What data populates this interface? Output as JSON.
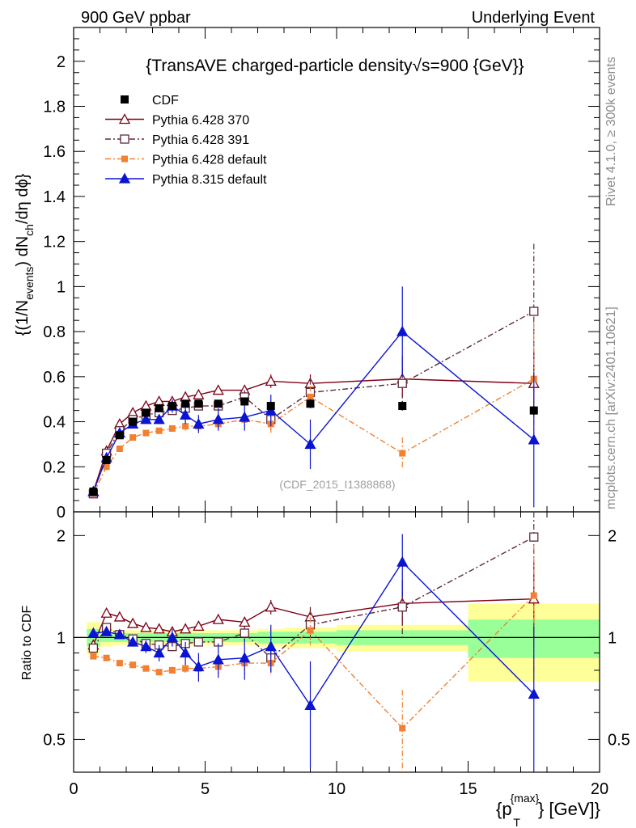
{
  "header": {
    "left": "900 GeV ppbar",
    "right": "Underlying Event"
  },
  "side_labels": {
    "rivet": "Rivet 4.1.0, ≥ 300k events",
    "mcplots": "mcplots.cern.ch [arXiv:2401.10621]"
  },
  "chart_data": {
    "type": "scatter",
    "title": "{TransAVE charged-particle density√s=900 {GeV}}",
    "watermark": "(CDF_2015_I1388868)",
    "ylabel_parts": {
      "prefix": "{(1/N",
      "sub1": "events",
      "mid": ") dN",
      "sub2": "ch",
      "suffix": "/dη dϕ}"
    },
    "ratio_ylabel": "Ratio to CDF",
    "xlabel_parts": {
      "prefix": "{p",
      "sub": "T",
      "sup": "{max}",
      "suffix": "} [GeV]}"
    },
    "xlim": [
      0,
      20
    ],
    "ylim": [
      0,
      2.15
    ],
    "ratio_ylim": [
      0.4,
      2.35
    ],
    "x_ticks": [
      "0",
      "5",
      "10",
      "15",
      "20"
    ],
    "y_ticks": [
      "0",
      "0.2",
      "0.4",
      "0.6",
      "0.8",
      "1",
      "1.2",
      "1.4",
      "1.6",
      "1.8",
      "2"
    ],
    "ratio_ticks": [
      "0.5",
      "1",
      "2"
    ],
    "data": {
      "name": "CDF",
      "x": [
        0.75,
        1.25,
        1.75,
        2.25,
        2.75,
        3.25,
        3.75,
        4.25,
        4.75,
        5.5,
        6.5,
        7.5,
        9.0,
        12.5,
        17.5
      ],
      "y": [
        0.09,
        0.23,
        0.34,
        0.4,
        0.44,
        0.46,
        0.47,
        0.48,
        0.48,
        0.48,
        0.49,
        0.47,
        0.48,
        0.47,
        0.45
      ],
      "err": [
        0.005,
        0.008,
        0.01,
        0.01,
        0.01,
        0.01,
        0.01,
        0.01,
        0.01,
        0.01,
        0.01,
        0.02,
        0.02,
        0.02,
        0.02
      ]
    },
    "series": [
      {
        "name": "Pythia 6.428 370",
        "color": "#800016",
        "marker": "open-triangle",
        "dash": "",
        "y": [
          0.09,
          0.27,
          0.39,
          0.44,
          0.47,
          0.49,
          0.49,
          0.51,
          0.52,
          0.54,
          0.54,
          0.58,
          0.57,
          0.59,
          0.57
        ],
        "err": [
          0.005,
          0.01,
          0.01,
          0.01,
          0.01,
          0.01,
          0.01,
          0.02,
          0.02,
          0.02,
          0.02,
          0.03,
          0.04,
          0.08,
          0.15
        ]
      },
      {
        "name": "Pythia 6.428 391",
        "color": "#5e2a3a",
        "marker": "open-square",
        "dash": "7,3,2,3",
        "y": [
          0.08,
          0.26,
          0.36,
          0.41,
          0.43,
          0.44,
          0.45,
          0.46,
          0.47,
          0.47,
          0.51,
          0.41,
          0.53,
          0.57,
          0.89
        ],
        "err": [
          0.005,
          0.01,
          0.01,
          0.01,
          0.01,
          0.01,
          0.01,
          0.02,
          0.02,
          0.02,
          0.03,
          0.05,
          0.06,
          0.12,
          0.3
        ]
      },
      {
        "name": "Pythia 6.428 default",
        "color": "#f28030",
        "marker": "filled-square",
        "dash": "7,3,2,3",
        "y": [
          0.08,
          0.2,
          0.28,
          0.33,
          0.35,
          0.36,
          0.37,
          0.38,
          0.38,
          0.39,
          0.41,
          0.39,
          0.51,
          0.26,
          0.59
        ],
        "err": [
          0.005,
          0.01,
          0.01,
          0.01,
          0.01,
          0.01,
          0.01,
          0.02,
          0.02,
          0.02,
          0.03,
          0.04,
          0.05,
          0.07,
          0.25
        ]
      },
      {
        "name": "Pythia 8.315 default",
        "color": "#0a14d2",
        "marker": "filled-triangle",
        "dash": "",
        "y": [
          0.09,
          0.24,
          0.35,
          0.39,
          0.41,
          0.41,
          0.47,
          0.43,
          0.39,
          0.41,
          0.42,
          0.45,
          0.3,
          0.8,
          0.32
        ],
        "err": [
          0.005,
          0.01,
          0.01,
          0.02,
          0.02,
          0.02,
          0.03,
          0.04,
          0.04,
          0.05,
          0.06,
          0.07,
          0.11,
          0.2,
          0.3
        ]
      }
    ],
    "ratio": {
      "series": [
        {
          "name": "Pythia 6.428 370",
          "y": [
            0.95,
            1.18,
            1.15,
            1.1,
            1.07,
            1.06,
            1.04,
            1.06,
            1.08,
            1.13,
            1.11,
            1.23,
            1.15,
            1.26,
            1.3
          ],
          "err": [
            0.02,
            0.02,
            0.02,
            0.02,
            0.02,
            0.02,
            0.02,
            0.03,
            0.03,
            0.03,
            0.04,
            0.06,
            0.08,
            0.17,
            0.32
          ]
        },
        {
          "name": "Pythia 6.428 391",
          "y": [
            0.93,
            1.07,
            1.02,
            0.99,
            0.96,
            0.95,
            0.94,
            0.96,
            0.97,
            0.97,
            1.03,
            0.87,
            1.09,
            1.23,
            1.98
          ],
          "err": [
            0.02,
            0.02,
            0.02,
            0.02,
            0.02,
            0.02,
            0.02,
            0.03,
            0.03,
            0.03,
            0.05,
            0.09,
            0.12,
            0.25,
            0.6
          ]
        },
        {
          "name": "Pythia 6.428 default",
          "y": [
            0.88,
            0.87,
            0.84,
            0.83,
            0.81,
            0.79,
            0.8,
            0.81,
            0.81,
            0.82,
            0.84,
            0.84,
            1.05,
            0.54,
            1.33
          ],
          "err": [
            0.01,
            0.01,
            0.01,
            0.01,
            0.01,
            0.01,
            0.02,
            0.03,
            0.04,
            0.04,
            0.06,
            0.07,
            0.1,
            0.16,
            0.55
          ]
        },
        {
          "name": "Pythia 8.315 default",
          "y": [
            1.03,
            1.04,
            1.02,
            0.97,
            0.94,
            0.9,
            1.0,
            0.9,
            0.82,
            0.86,
            0.87,
            0.94,
            0.63,
            1.67,
            0.68
          ],
          "err": [
            0.02,
            0.02,
            0.02,
            0.03,
            0.04,
            0.05,
            0.06,
            0.07,
            0.08,
            0.1,
            0.12,
            0.15,
            0.22,
            0.35,
            0.4
          ]
        }
      ],
      "bands": [
        {
          "x0": 0.5,
          "x1": 1.0,
          "inner": 0.06,
          "outer": 0.11
        },
        {
          "x0": 1.0,
          "x1": 1.5,
          "inner": 0.03,
          "outer": 0.06
        },
        {
          "x0": 1.5,
          "x1": 2.0,
          "inner": 0.03,
          "outer": 0.05
        },
        {
          "x0": 2.0,
          "x1": 2.5,
          "inner": 0.03,
          "outer": 0.05
        },
        {
          "x0": 2.5,
          "x1": 3.0,
          "inner": 0.03,
          "outer": 0.05
        },
        {
          "x0": 3.0,
          "x1": 3.5,
          "inner": 0.03,
          "outer": 0.05
        },
        {
          "x0": 3.5,
          "x1": 4.0,
          "inner": 0.03,
          "outer": 0.05
        },
        {
          "x0": 4.0,
          "x1": 4.5,
          "inner": 0.03,
          "outer": 0.05
        },
        {
          "x0": 4.5,
          "x1": 5.0,
          "inner": 0.03,
          "outer": 0.05
        },
        {
          "x0": 5.0,
          "x1": 6.0,
          "inner": 0.03,
          "outer": 0.05
        },
        {
          "x0": 6.0,
          "x1": 7.0,
          "inner": 0.03,
          "outer": 0.05
        },
        {
          "x0": 7.0,
          "x1": 8.0,
          "inner": 0.04,
          "outer": 0.06
        },
        {
          "x0": 8.0,
          "x1": 10.0,
          "inner": 0.04,
          "outer": 0.07
        },
        {
          "x0": 10.0,
          "x1": 15.0,
          "inner": 0.05,
          "outer": 0.09
        },
        {
          "x0": 15.0,
          "x1": 20.0,
          "inner": 0.13,
          "outer": 0.26
        }
      ]
    }
  }
}
